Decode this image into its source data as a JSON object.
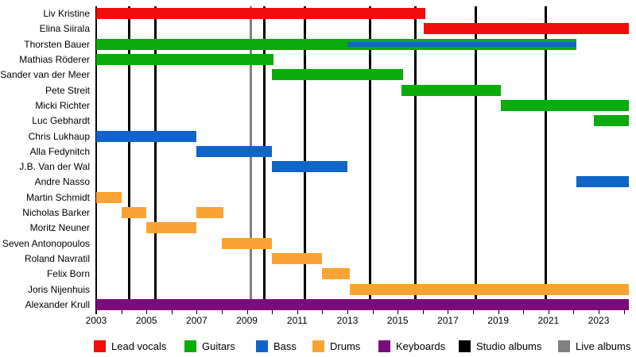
{
  "chart_data": {
    "type": "bar",
    "subtype": "gantt-timeline",
    "title": "",
    "x_axis": {
      "min": 2003,
      "max": 2024.2,
      "minor_tick_step": 1,
      "major_tick_labels": [
        "2003",
        "2005",
        "2007",
        "2009",
        "2011",
        "2013",
        "2015",
        "2017",
        "2019",
        "2021",
        "2023"
      ],
      "grid": false
    },
    "colors": {
      "lead_vocals": "#f20d0d",
      "guitars": "#0bab0b",
      "bass": "#1065c8",
      "drums": "#f9a335",
      "keyboards": "#7b0c7b",
      "studio_album_line": "#000000",
      "live_album_line": "#808080",
      "axis": "#000000",
      "text": "#000000"
    },
    "members": [
      {
        "name": "Liv Kristine",
        "segments": [
          {
            "role": "lead_vocals",
            "start": 2003.0,
            "end": 2016.1
          }
        ]
      },
      {
        "name": "Elina Siirala",
        "segments": [
          {
            "role": "lead_vocals",
            "start": 2016.05,
            "end": 2024.2
          }
        ]
      },
      {
        "name": "Thorsten Bauer",
        "segments": [
          {
            "role": "guitars",
            "start": 2003.0,
            "end": 2022.1
          },
          {
            "role": "bass",
            "start": 2013.0,
            "end": 2022.1,
            "overlay": true
          }
        ]
      },
      {
        "name": "Mathias Röderer",
        "segments": [
          {
            "role": "guitars",
            "start": 2003.0,
            "end": 2010.05
          }
        ]
      },
      {
        "name": "Sander van der Meer",
        "segments": [
          {
            "role": "guitars",
            "start": 2010.0,
            "end": 2015.2
          }
        ]
      },
      {
        "name": "Pete Streit",
        "segments": [
          {
            "role": "guitars",
            "start": 2015.15,
            "end": 2019.1
          }
        ]
      },
      {
        "name": "Micki Richter",
        "segments": [
          {
            "role": "guitars",
            "start": 2019.1,
            "end": 2024.2
          }
        ]
      },
      {
        "name": "Luc Gebhardt",
        "segments": [
          {
            "role": "guitars",
            "start": 2022.8,
            "end": 2024.2
          }
        ]
      },
      {
        "name": "Chris Lukhaup",
        "segments": [
          {
            "role": "bass",
            "start": 2003.0,
            "end": 2007.0
          }
        ]
      },
      {
        "name": "Alla Fedynitch",
        "segments": [
          {
            "role": "bass",
            "start": 2007.0,
            "end": 2010.0
          }
        ]
      },
      {
        "name": "J.B. Van der Wal",
        "segments": [
          {
            "role": "bass",
            "start": 2010.0,
            "end": 2013.0
          }
        ]
      },
      {
        "name": "Andre Nasso",
        "segments": [
          {
            "role": "bass",
            "start": 2022.1,
            "end": 2024.2
          }
        ]
      },
      {
        "name": "Martin Schmidt",
        "segments": [
          {
            "role": "drums",
            "start": 2003.0,
            "end": 2004.0
          }
        ]
      },
      {
        "name": "Nicholas Barker",
        "segments": [
          {
            "role": "drums",
            "start": 2004.0,
            "end": 2005.0
          },
          {
            "role": "drums",
            "start": 2007.0,
            "end": 2008.05
          }
        ]
      },
      {
        "name": "Moritz Neuner",
        "segments": [
          {
            "role": "drums",
            "start": 2005.0,
            "end": 2007.0
          }
        ]
      },
      {
        "name": "Seven Antonopoulos",
        "segments": [
          {
            "role": "drums",
            "start": 2008.0,
            "end": 2010.0
          }
        ]
      },
      {
        "name": "Roland Navratil",
        "segments": [
          {
            "role": "drums",
            "start": 2010.0,
            "end": 2012.0
          }
        ]
      },
      {
        "name": "Felix Born",
        "segments": [
          {
            "role": "drums",
            "start": 2012.0,
            "end": 2013.1
          }
        ]
      },
      {
        "name": "Joris Nijenhuis",
        "segments": [
          {
            "role": "drums",
            "start": 2013.1,
            "end": 2024.2
          }
        ]
      },
      {
        "name": "Alexander Krull",
        "segments": [
          {
            "role": "keyboards",
            "start": 2003.0,
            "end": 2024.2
          }
        ]
      }
    ],
    "event_lines": {
      "studio_albums": [
        2004.3,
        2005.35,
        2009.7,
        2011.3,
        2013.9,
        2015.7,
        2018.1,
        2020.9
      ],
      "live_albums": [
        2009.17
      ]
    },
    "legend": [
      {
        "label": "Lead vocals",
        "color_role": "lead_vocals"
      },
      {
        "label": "Guitars",
        "color_role": "guitars"
      },
      {
        "label": "Bass",
        "color_role": "bass"
      },
      {
        "label": "Drums",
        "color_role": "drums"
      },
      {
        "label": "Keyboards",
        "color_role": "keyboards"
      },
      {
        "label": "Studio albums",
        "color_role": "studio_album_line"
      },
      {
        "label": "Live albums",
        "color_role": "live_album_line"
      }
    ],
    "legend_position": "bottom"
  }
}
